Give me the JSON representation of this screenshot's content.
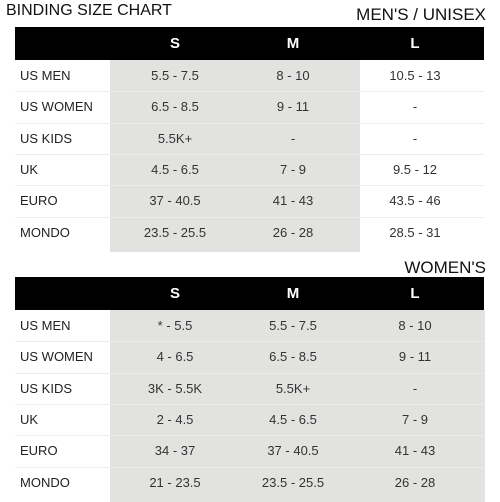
{
  "title": "BINDING SIZE CHART",
  "tables": [
    {
      "title": "MEN'S / UNISEX",
      "header": [
        "S",
        "M",
        "L"
      ],
      "rows": [
        [
          "US MEN",
          "5.5 - 7.5",
          "8 - 10",
          "10.5 - 13"
        ],
        [
          "US WOMEN",
          "6.5 - 8.5",
          "9 - 11",
          "-"
        ],
        [
          "US KIDS",
          "5.5K+",
          "-",
          "-"
        ],
        [
          "UK",
          "4.5 - 6.5",
          "7 - 9",
          "9.5 - 12"
        ],
        [
          "EURO",
          "37 - 40.5",
          "41 - 43",
          "43.5 - 46"
        ],
        [
          "MONDO",
          "23.5 - 25.5",
          "26 - 28",
          "28.5 - 31"
        ]
      ]
    },
    {
      "title": "WOMEN'S",
      "header": [
        "S",
        "M",
        "L"
      ],
      "rows": [
        [
          "US MEN",
          "* - 5.5",
          "5.5 - 7.5",
          "8 - 10"
        ],
        [
          "US WOMEN",
          "4 - 6.5",
          "6.5 - 8.5",
          "9 - 11"
        ],
        [
          "US KIDS",
          "3K - 5.5K",
          "5.5K+",
          "-"
        ],
        [
          "UK",
          "2 - 4.5",
          "4.5 - 6.5",
          "7 - 9"
        ],
        [
          "EURO",
          "34 - 37",
          "37 - 40.5",
          "41 - 43"
        ],
        [
          "MONDO",
          "21 - 23.5",
          "23.5 - 25.5",
          "26 - 28"
        ]
      ]
    }
  ]
}
